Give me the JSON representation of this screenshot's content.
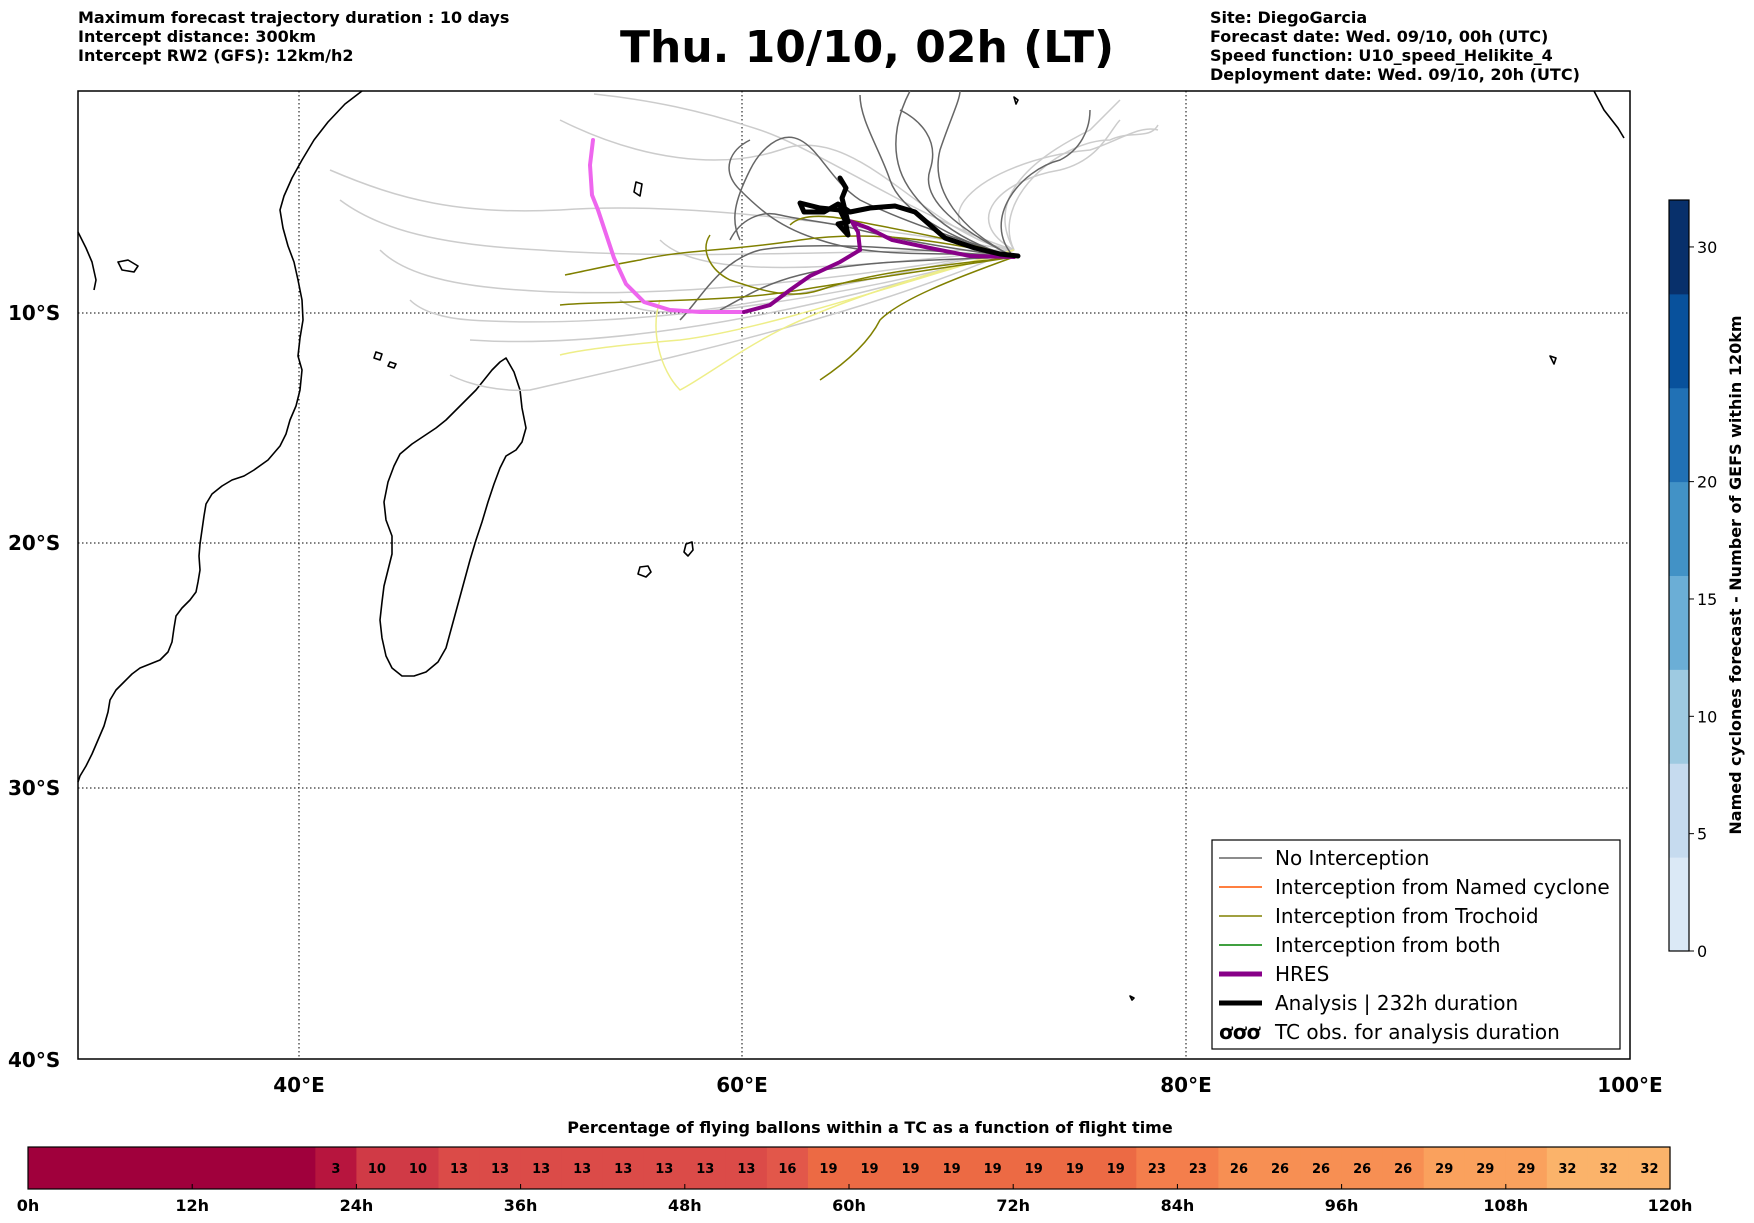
{
  "header": {
    "left": [
      "Maximum forecast trajectory duration : 10 days",
      "Intercept distance: 300km",
      "Intercept RW2 (GFS):  12km/h2"
    ],
    "title": "Thu. 10/10, 02h (LT)",
    "right": [
      "Site: DiegoGarcia",
      "Forecast date: Wed. 09/10, 00h (UTC)",
      "Speed function: U10_speed_Helikite_4",
      "Deployment date: Wed. 09/10, 20h (UTC)"
    ]
  },
  "map": {
    "lat_labels": [
      "10°S",
      "20°S",
      "30°S",
      "40°S"
    ],
    "lon_labels": [
      "40°E",
      "60°E",
      "80°E",
      "100°E"
    ],
    "colors": {
      "no_interception": "#666666",
      "named_cyclone": "#ff5500",
      "trochoid": "#808000",
      "both": "#008000",
      "hres": "#880088",
      "hres_forecast": "#ee66ee",
      "analysis": "#000000",
      "faded_track": "#cccccc",
      "faded_trochoid": "#eeee88"
    },
    "legend": [
      {
        "label": "No Interception",
        "style": "thin",
        "color": "#666666"
      },
      {
        "label": "Interception from Named cyclone",
        "style": "thin",
        "color": "#ff5500"
      },
      {
        "label": "Interception from Trochoid",
        "style": "thin",
        "color": "#808000"
      },
      {
        "label": "Interception from both",
        "style": "thin",
        "color": "#008000"
      },
      {
        "label": "HRES",
        "style": "thick",
        "color": "#880088"
      },
      {
        "label": "Analysis | 232h duration",
        "style": "thick",
        "color": "#000000"
      },
      {
        "label": "TC obs. for analysis duration",
        "style": "symbol",
        "symbol": "ơơơ"
      }
    ]
  },
  "colorbar": {
    "label": "Named cyclones forecast - Number of GEFS within 120km",
    "ticks": [
      "0",
      "5",
      "10",
      "15",
      "20",
      "30"
    ],
    "colors": [
      "#dbe9f6",
      "#c6dbef",
      "#9ecae1",
      "#6baed6",
      "#4292c6",
      "#2171b5",
      "#08519c",
      "#08306b"
    ]
  },
  "timebar": {
    "title": "Percentage of flying ballons within a TC as a function of flight time",
    "cells": [
      {
        "label": "",
        "color": "#a0003c"
      },
      {
        "label": "",
        "color": "#a0003c"
      },
      {
        "label": "",
        "color": "#a0003c"
      },
      {
        "label": "",
        "color": "#a0003c"
      },
      {
        "label": "",
        "color": "#a0003c"
      },
      {
        "label": "",
        "color": "#a0003c"
      },
      {
        "label": "",
        "color": "#a0003c"
      },
      {
        "label": "3",
        "color": "#b7153e"
      },
      {
        "label": "10",
        "color": "#d03a46"
      },
      {
        "label": "10",
        "color": "#d03a46"
      },
      {
        "label": "13",
        "color": "#db4b48"
      },
      {
        "label": "13",
        "color": "#db4b48"
      },
      {
        "label": "13",
        "color": "#db4b48"
      },
      {
        "label": "13",
        "color": "#db4b48"
      },
      {
        "label": "13",
        "color": "#db4b48"
      },
      {
        "label": "13",
        "color": "#db4b48"
      },
      {
        "label": "13",
        "color": "#db4b48"
      },
      {
        "label": "13",
        "color": "#db4b48"
      },
      {
        "label": "16",
        "color": "#e2574a"
      },
      {
        "label": "19",
        "color": "#ec6a44"
      },
      {
        "label": "19",
        "color": "#ec6a44"
      },
      {
        "label": "19",
        "color": "#ec6a44"
      },
      {
        "label": "19",
        "color": "#ec6a44"
      },
      {
        "label": "19",
        "color": "#ec6a44"
      },
      {
        "label": "19",
        "color": "#ec6a44"
      },
      {
        "label": "19",
        "color": "#ec6a44"
      },
      {
        "label": "19",
        "color": "#ec6a44"
      },
      {
        "label": "23",
        "color": "#f47e4c"
      },
      {
        "label": "23",
        "color": "#f47e4c"
      },
      {
        "label": "26",
        "color": "#f78f53"
      },
      {
        "label": "26",
        "color": "#f78f53"
      },
      {
        "label": "26",
        "color": "#f78f53"
      },
      {
        "label": "26",
        "color": "#f78f53"
      },
      {
        "label": "26",
        "color": "#f78f53"
      },
      {
        "label": "29",
        "color": "#faa15d"
      },
      {
        "label": "29",
        "color": "#faa15d"
      },
      {
        "label": "29",
        "color": "#faa15d"
      },
      {
        "label": "32",
        "color": "#fbb36a"
      },
      {
        "label": "32",
        "color": "#fbb36a"
      },
      {
        "label": "32",
        "color": "#fbb36a"
      }
    ],
    "ticks": [
      "0h",
      "12h",
      "24h",
      "36h",
      "48h",
      "60h",
      "72h",
      "84h",
      "96h",
      "108h",
      "120h"
    ]
  }
}
